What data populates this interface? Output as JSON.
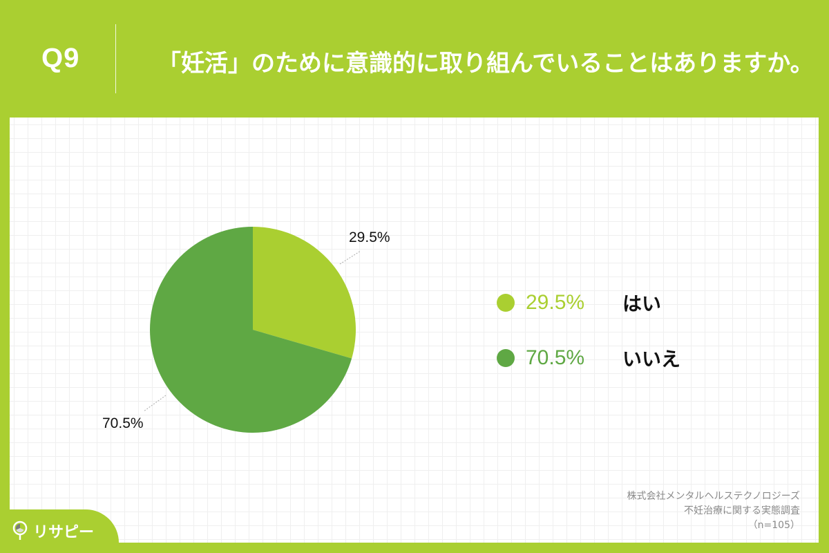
{
  "header": {
    "question_number": "Q9",
    "question_text": "「妊活」のために意識的に取り組んでいることはありますか。"
  },
  "colors": {
    "background": "#aacf31",
    "yes": "#aacf31",
    "no": "#5fa844",
    "text": "#111111",
    "source_text": "#8a8a8a"
  },
  "chart_data": {
    "type": "pie",
    "title": "「妊活」のために意識的に取り組んでいることはありますか。",
    "categories": [
      "はい",
      "いいえ"
    ],
    "values": [
      29.5,
      70.5
    ],
    "unit": "%",
    "colors": [
      "#aacf31",
      "#5fa844"
    ],
    "start_angle": "12 o'clock, clockwise",
    "data_labels": [
      "29.5%",
      "70.5%"
    ],
    "legend_position": "right",
    "n": 105
  },
  "pie_labels": [
    {
      "text": "29.5%"
    },
    {
      "text": "70.5%"
    }
  ],
  "legend": [
    {
      "pct": "29.5%",
      "label": "はい"
    },
    {
      "pct": "70.5%",
      "label": "いいえ"
    }
  ],
  "source": {
    "company": "株式会社メンタルヘルステクノロジーズ",
    "survey": "不妊治療に関する実態調査",
    "sample": "（n=105）"
  },
  "logo": {
    "text": "リサピー"
  }
}
